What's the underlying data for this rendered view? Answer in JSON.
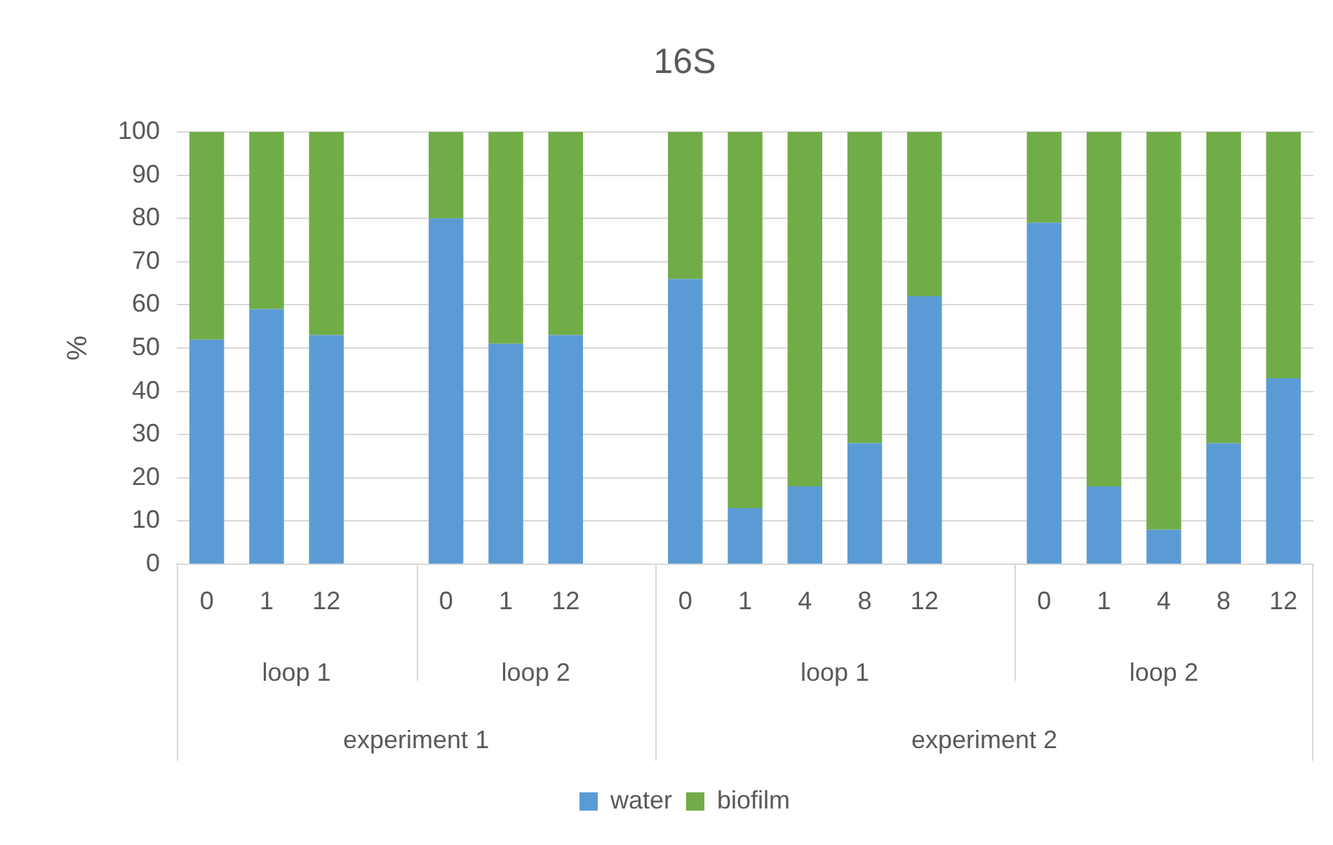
{
  "chart_data": {
    "type": "bar",
    "title": "16S",
    "ylabel": "%",
    "stacked": true,
    "categories": [
      "0",
      "1",
      "12",
      null,
      "0",
      "1",
      "12",
      null,
      "0",
      "1",
      "4",
      "8",
      "12",
      null,
      "0",
      "1",
      "4",
      "8",
      "12"
    ],
    "series": [
      {
        "name": "water",
        "color": "#5b9bd5",
        "values": [
          52,
          59,
          53,
          null,
          80,
          51,
          53,
          null,
          66,
          13,
          18,
          28,
          62,
          null,
          79,
          18,
          8,
          28,
          43
        ]
      },
      {
        "name": "biofilm",
        "color": "#70ad47",
        "values": [
          48,
          41,
          47,
          null,
          20,
          49,
          47,
          null,
          34,
          87,
          82,
          72,
          38,
          null,
          21,
          82,
          92,
          72,
          57
        ]
      }
    ],
    "annotations": [
      "loop 1",
      "loop 2",
      "loop 1",
      "loop 2",
      "experiment 1",
      "experiment 2"
    ],
    "ylim": [
      0,
      100
    ],
    "yticks": [
      0,
      10,
      20,
      30,
      40,
      50,
      60,
      70,
      80,
      90,
      100
    ],
    "grid": "y",
    "legend": "bottom"
  }
}
